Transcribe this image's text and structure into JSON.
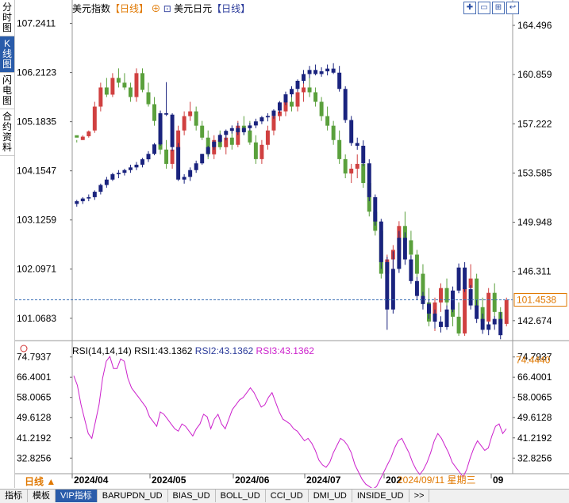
{
  "sidebar": {
    "tabs": [
      {
        "label": "分时图",
        "active": false
      },
      {
        "label": "K线图",
        "active": true
      },
      {
        "label": "闪电图",
        "active": false
      },
      {
        "label": "合约资料",
        "active": false
      }
    ]
  },
  "header": {
    "instrument1": "美元指数",
    "period1": "【日线】",
    "instrument2": "美元日元",
    "period2": "【日线】"
  },
  "price_axis_left": [
    "107.2411",
    "106.2123",
    "105.1835",
    "104.1547",
    "103.1259",
    "102.0971",
    "101.0683"
  ],
  "price_axis_right": [
    "164.496",
    "160.859",
    "157.222",
    "153.585",
    "149.948",
    "146.311",
    "142.674"
  ],
  "last_price": "101.4538",
  "rsi": {
    "title": "RSI(14,14,14)",
    "rsi1": "RSI1:43.1362",
    "rsi2": "RSI2:43.1362",
    "rsi3": "RSI3:43.1362",
    "axis": [
      "74.7937",
      "66.4001",
      "58.0065",
      "49.6128",
      "41.2192",
      "32.8256"
    ],
    "highlight": "74.4440",
    "values": [
      67,
      63,
      55,
      49,
      43,
      41,
      48,
      55,
      66,
      73,
      75,
      70,
      70,
      74,
      73,
      66,
      62,
      60,
      58,
      56,
      54,
      50,
      48,
      46,
      52,
      51,
      49,
      47,
      45,
      44,
      47,
      46,
      44,
      42,
      45,
      47,
      51,
      50,
      45,
      49,
      51,
      47,
      45,
      49,
      53,
      55,
      57,
      58,
      60,
      62,
      60,
      57,
      54,
      55,
      58,
      60,
      56,
      52,
      49,
      48,
      47,
      45,
      44,
      42,
      40,
      41,
      39,
      36,
      32,
      30,
      29,
      31,
      35,
      38,
      41,
      40,
      38,
      35,
      30,
      27,
      24,
      22,
      21,
      20,
      21,
      24,
      27,
      30,
      33,
      37,
      40,
      41,
      38,
      35,
      31,
      28,
      26,
      28,
      31,
      35,
      40,
      43,
      41,
      38,
      35,
      31,
      29,
      27,
      25,
      28,
      33,
      37,
      40,
      38,
      36,
      37,
      42,
      46,
      47,
      43,
      45
    ]
  },
  "time_axis": [
    "2024/04",
    "2024/05",
    "2024/06",
    "2024/07",
    "202",
    "09"
  ],
  "cursor_date": "2024/09/11 星期三",
  "period_selector": "日线",
  "bottom_tabs": [
    {
      "label": "指标",
      "active": false
    },
    {
      "label": "模板",
      "active": false
    },
    {
      "label": "VIP指标",
      "active": true
    },
    {
      "label": "BARUPDN_UD",
      "active": false
    },
    {
      "label": "BIAS_UD",
      "active": false
    },
    {
      "label": "BOLL_UD",
      "active": false
    },
    {
      "label": "CCI_UD",
      "active": false
    },
    {
      "label": "DMI_UD",
      "active": false
    },
    {
      "label": "INSIDE_UD",
      "active": false
    },
    {
      "label": ">>",
      "active": false
    }
  ],
  "colors": {
    "up": "#d04040",
    "down": "#5aa03c",
    "usdjpy": "#1a237e",
    "rsi": "#cc22cc",
    "accent": "#e07800",
    "tab_active": "#2a5caa"
  },
  "toolbar_icons": [
    "zoom-in-icon",
    "zoom-out-icon",
    "full-screen-icon",
    "back-icon"
  ],
  "dxy_series": [
    [
      104.9,
      104.8,
      104.75,
      104.85
    ],
    [
      104.8,
      104.9,
      104.8,
      104.87
    ],
    [
      104.88,
      105.0,
      104.85,
      104.98
    ],
    [
      105.0,
      105.6,
      104.95,
      105.5
    ],
    [
      105.5,
      106.0,
      105.4,
      105.9
    ],
    [
      105.9,
      106.1,
      105.7,
      105.75
    ],
    [
      105.75,
      106.2,
      105.7,
      106.1
    ],
    [
      106.1,
      106.3,
      105.9,
      106.0
    ],
    [
      106.0,
      106.2,
      105.85,
      105.9
    ],
    [
      105.9,
      106.0,
      105.6,
      105.7
    ],
    [
      105.7,
      106.3,
      105.6,
      106.2
    ],
    [
      106.2,
      106.3,
      105.8,
      105.85
    ],
    [
      105.8,
      106.0,
      105.5,
      105.55
    ],
    [
      105.55,
      105.7,
      105.1,
      105.2
    ],
    [
      105.2,
      105.3,
      104.5,
      104.6
    ],
    [
      104.6,
      104.8,
      104.2,
      104.3
    ],
    [
      104.3,
      104.7,
      104.2,
      104.6
    ],
    [
      104.6,
      105.1,
      104.5,
      105.0
    ],
    [
      105.0,
      105.4,
      104.9,
      105.3
    ],
    [
      105.3,
      105.6,
      105.2,
      105.4
    ],
    [
      105.4,
      105.5,
      105.0,
      105.1
    ],
    [
      105.1,
      105.2,
      104.8,
      104.85
    ],
    [
      104.85,
      105.0,
      104.4,
      104.5
    ],
    [
      104.5,
      104.9,
      104.4,
      104.8
    ],
    [
      104.8,
      105.0,
      104.6,
      104.65
    ],
    [
      104.65,
      104.9,
      104.5,
      104.85
    ],
    [
      104.85,
      105.0,
      104.6,
      104.7
    ],
    [
      104.7,
      105.2,
      104.65,
      105.1
    ],
    [
      105.1,
      105.3,
      104.9,
      105.0
    ],
    [
      105.0,
      105.2,
      104.7,
      104.75
    ],
    [
      104.75,
      104.9,
      104.3,
      104.4
    ],
    [
      104.4,
      104.8,
      104.3,
      104.7
    ],
    [
      104.7,
      105.1,
      104.6,
      105.0
    ],
    [
      105.0,
      105.4,
      104.9,
      105.3
    ],
    [
      105.3,
      105.5,
      105.2,
      105.4
    ],
    [
      105.4,
      105.7,
      105.3,
      105.6
    ],
    [
      105.6,
      105.8,
      105.4,
      105.5
    ],
    [
      105.5,
      105.9,
      105.4,
      105.8
    ],
    [
      105.8,
      106.0,
      105.6,
      105.9
    ],
    [
      105.9,
      106.1,
      105.7,
      105.8
    ],
    [
      105.8,
      105.9,
      105.5,
      105.6
    ],
    [
      105.6,
      105.7,
      105.2,
      105.3
    ],
    [
      105.3,
      105.5,
      105.0,
      105.1
    ],
    [
      105.1,
      105.2,
      104.7,
      104.8
    ],
    [
      104.8,
      105.0,
      104.3,
      104.4
    ],
    [
      104.4,
      104.5,
      104.0,
      104.1
    ],
    [
      104.1,
      104.3,
      103.9,
      104.2
    ],
    [
      104.2,
      104.5,
      104.0,
      104.3
    ],
    [
      104.3,
      104.4,
      103.8,
      103.9
    ],
    [
      103.9,
      104.1,
      103.2,
      103.3
    ],
    [
      103.3,
      103.5,
      102.8,
      102.9
    ],
    [
      102.9,
      103.1,
      101.9,
      102.0
    ],
    [
      102.0,
      102.4,
      101.8,
      102.3
    ],
    [
      102.3,
      102.6,
      102.1,
      102.5
    ],
    [
      102.5,
      103.1,
      102.4,
      103.0
    ],
    [
      103.0,
      103.3,
      102.6,
      102.7
    ],
    [
      102.7,
      102.9,
      102.3,
      102.4
    ],
    [
      102.4,
      102.5,
      101.9,
      102.0
    ],
    [
      102.0,
      102.2,
      101.3,
      101.4
    ],
    [
      101.4,
      101.7,
      100.9,
      101.0
    ],
    [
      101.0,
      101.5,
      100.8,
      101.4
    ],
    [
      101.4,
      101.8,
      101.2,
      101.7
    ],
    [
      101.7,
      101.9,
      101.3,
      101.4
    ],
    [
      101.4,
      101.6,
      100.9,
      101.1
    ],
    [
      101.1,
      101.4,
      100.7,
      100.75
    ],
    [
      100.75,
      101.8,
      100.7,
      101.7
    ],
    [
      101.7,
      102.2,
      101.5,
      101.9
    ],
    [
      101.9,
      102.0,
      101.2,
      101.3
    ],
    [
      101.3,
      101.5,
      100.9,
      101.0
    ],
    [
      101.0,
      101.7,
      100.9,
      101.6
    ],
    [
      101.6,
      101.8,
      101.1,
      101.2
    ],
    [
      101.2,
      101.3,
      100.8,
      100.95
    ],
    [
      100.95,
      101.5,
      100.9,
      101.45
    ]
  ],
  "usdjpy_series": [
    [
      151.3,
      151.6,
      151.1,
      151.5
    ],
    [
      151.5,
      151.8,
      151.3,
      151.7
    ],
    [
      151.7,
      152.0,
      151.5,
      151.8
    ],
    [
      151.8,
      152.3,
      151.6,
      152.2
    ],
    [
      152.2,
      152.8,
      152.0,
      152.7
    ],
    [
      152.7,
      153.3,
      152.5,
      153.1
    ],
    [
      153.1,
      153.6,
      153.0,
      153.5
    ],
    [
      153.5,
      153.8,
      153.2,
      153.6
    ],
    [
      153.6,
      153.9,
      153.4,
      153.8
    ],
    [
      153.8,
      154.2,
      153.6,
      154.0
    ],
    [
      154.0,
      154.4,
      153.8,
      154.2
    ],
    [
      154.2,
      154.7,
      154.0,
      154.6
    ],
    [
      154.6,
      155.2,
      154.4,
      155.0
    ],
    [
      155.0,
      155.8,
      154.9,
      155.7
    ],
    [
      155.7,
      158.2,
      155.6,
      158.0
    ],
    [
      158.0,
      160.3,
      157.8,
      157.9
    ],
    [
      157.9,
      158.0,
      155.2,
      155.5
    ],
    [
      155.5,
      155.8,
      153.0,
      153.1
    ],
    [
      153.1,
      153.5,
      152.8,
      153.3
    ],
    [
      153.3,
      154.0,
      153.0,
      153.8
    ],
    [
      153.8,
      154.5,
      153.6,
      154.3
    ],
    [
      154.3,
      155.0,
      154.2,
      155.0
    ],
    [
      155.0,
      155.6,
      154.8,
      155.5
    ],
    [
      155.5,
      156.0,
      155.3,
      155.9
    ],
    [
      155.9,
      156.5,
      155.8,
      156.4
    ],
    [
      156.4,
      156.8,
      156.0,
      156.7
    ],
    [
      156.7,
      157.1,
      156.5,
      156.9
    ],
    [
      156.9,
      157.3,
      156.4,
      156.6
    ],
    [
      156.6,
      157.0,
      156.4,
      156.9
    ],
    [
      156.9,
      157.3,
      156.7,
      157.1
    ],
    [
      157.1,
      157.6,
      156.9,
      157.4
    ],
    [
      157.4,
      157.8,
      157.2,
      157.7
    ],
    [
      157.7,
      158.0,
      157.4,
      157.8
    ],
    [
      157.8,
      158.3,
      157.6,
      158.2
    ],
    [
      158.2,
      158.9,
      158.0,
      158.8
    ],
    [
      158.8,
      159.6,
      158.6,
      159.4
    ],
    [
      159.4,
      160.0,
      159.2,
      159.8
    ],
    [
      159.8,
      160.5,
      159.6,
      160.4
    ],
    [
      160.4,
      161.2,
      160.2,
      160.9
    ],
    [
      160.9,
      161.5,
      160.6,
      161.2
    ],
    [
      161.2,
      161.6,
      160.8,
      160.9
    ],
    [
      160.9,
      161.4,
      160.7,
      161.1
    ],
    [
      161.1,
      161.6,
      160.8,
      161.3
    ],
    [
      161.3,
      161.7,
      160.9,
      161.0
    ],
    [
      161.0,
      161.5,
      159.6,
      159.8
    ],
    [
      159.8,
      160.0,
      157.3,
      157.5
    ],
    [
      157.5,
      157.8,
      155.6,
      155.8
    ],
    [
      155.8,
      156.2,
      155.3,
      155.6
    ],
    [
      155.6,
      156.0,
      154.1,
      154.3
    ],
    [
      154.3,
      154.6,
      151.5,
      151.8
    ],
    [
      151.8,
      152.0,
      149.7,
      150.0
    ],
    [
      150.0,
      150.2,
      146.5,
      147.0
    ],
    [
      147.0,
      147.4,
      142.0,
      143.5
    ],
    [
      143.5,
      147.8,
      143.2,
      146.5
    ],
    [
      146.5,
      149.3,
      146.2,
      148.8
    ],
    [
      148.8,
      149.2,
      146.8,
      147.2
    ],
    [
      147.2,
      147.5,
      145.4,
      145.6
    ],
    [
      145.6,
      145.9,
      144.2,
      144.5
    ],
    [
      144.5,
      144.8,
      143.5,
      143.9
    ],
    [
      143.9,
      144.2,
      142.8,
      143.2
    ],
    [
      143.2,
      143.5,
      142.1,
      142.6
    ],
    [
      142.6,
      143.0,
      141.8,
      142.2
    ],
    [
      142.2,
      143.8,
      142.0,
      143.5
    ],
    [
      143.5,
      145.2,
      143.3,
      144.9
    ],
    [
      144.9,
      146.9,
      144.7,
      146.6
    ],
    [
      146.6,
      147.0,
      144.8,
      145.0
    ],
    [
      145.0,
      145.3,
      143.5,
      143.8
    ],
    [
      143.8,
      144.2,
      142.5,
      142.8
    ],
    [
      142.8,
      143.2,
      141.7,
      142.0
    ],
    [
      142.0,
      142.6,
      141.6,
      142.4
    ],
    [
      142.4,
      143.0,
      142.0,
      142.8
    ],
    [
      142.8,
      143.3,
      141.3,
      141.6
    ]
  ]
}
